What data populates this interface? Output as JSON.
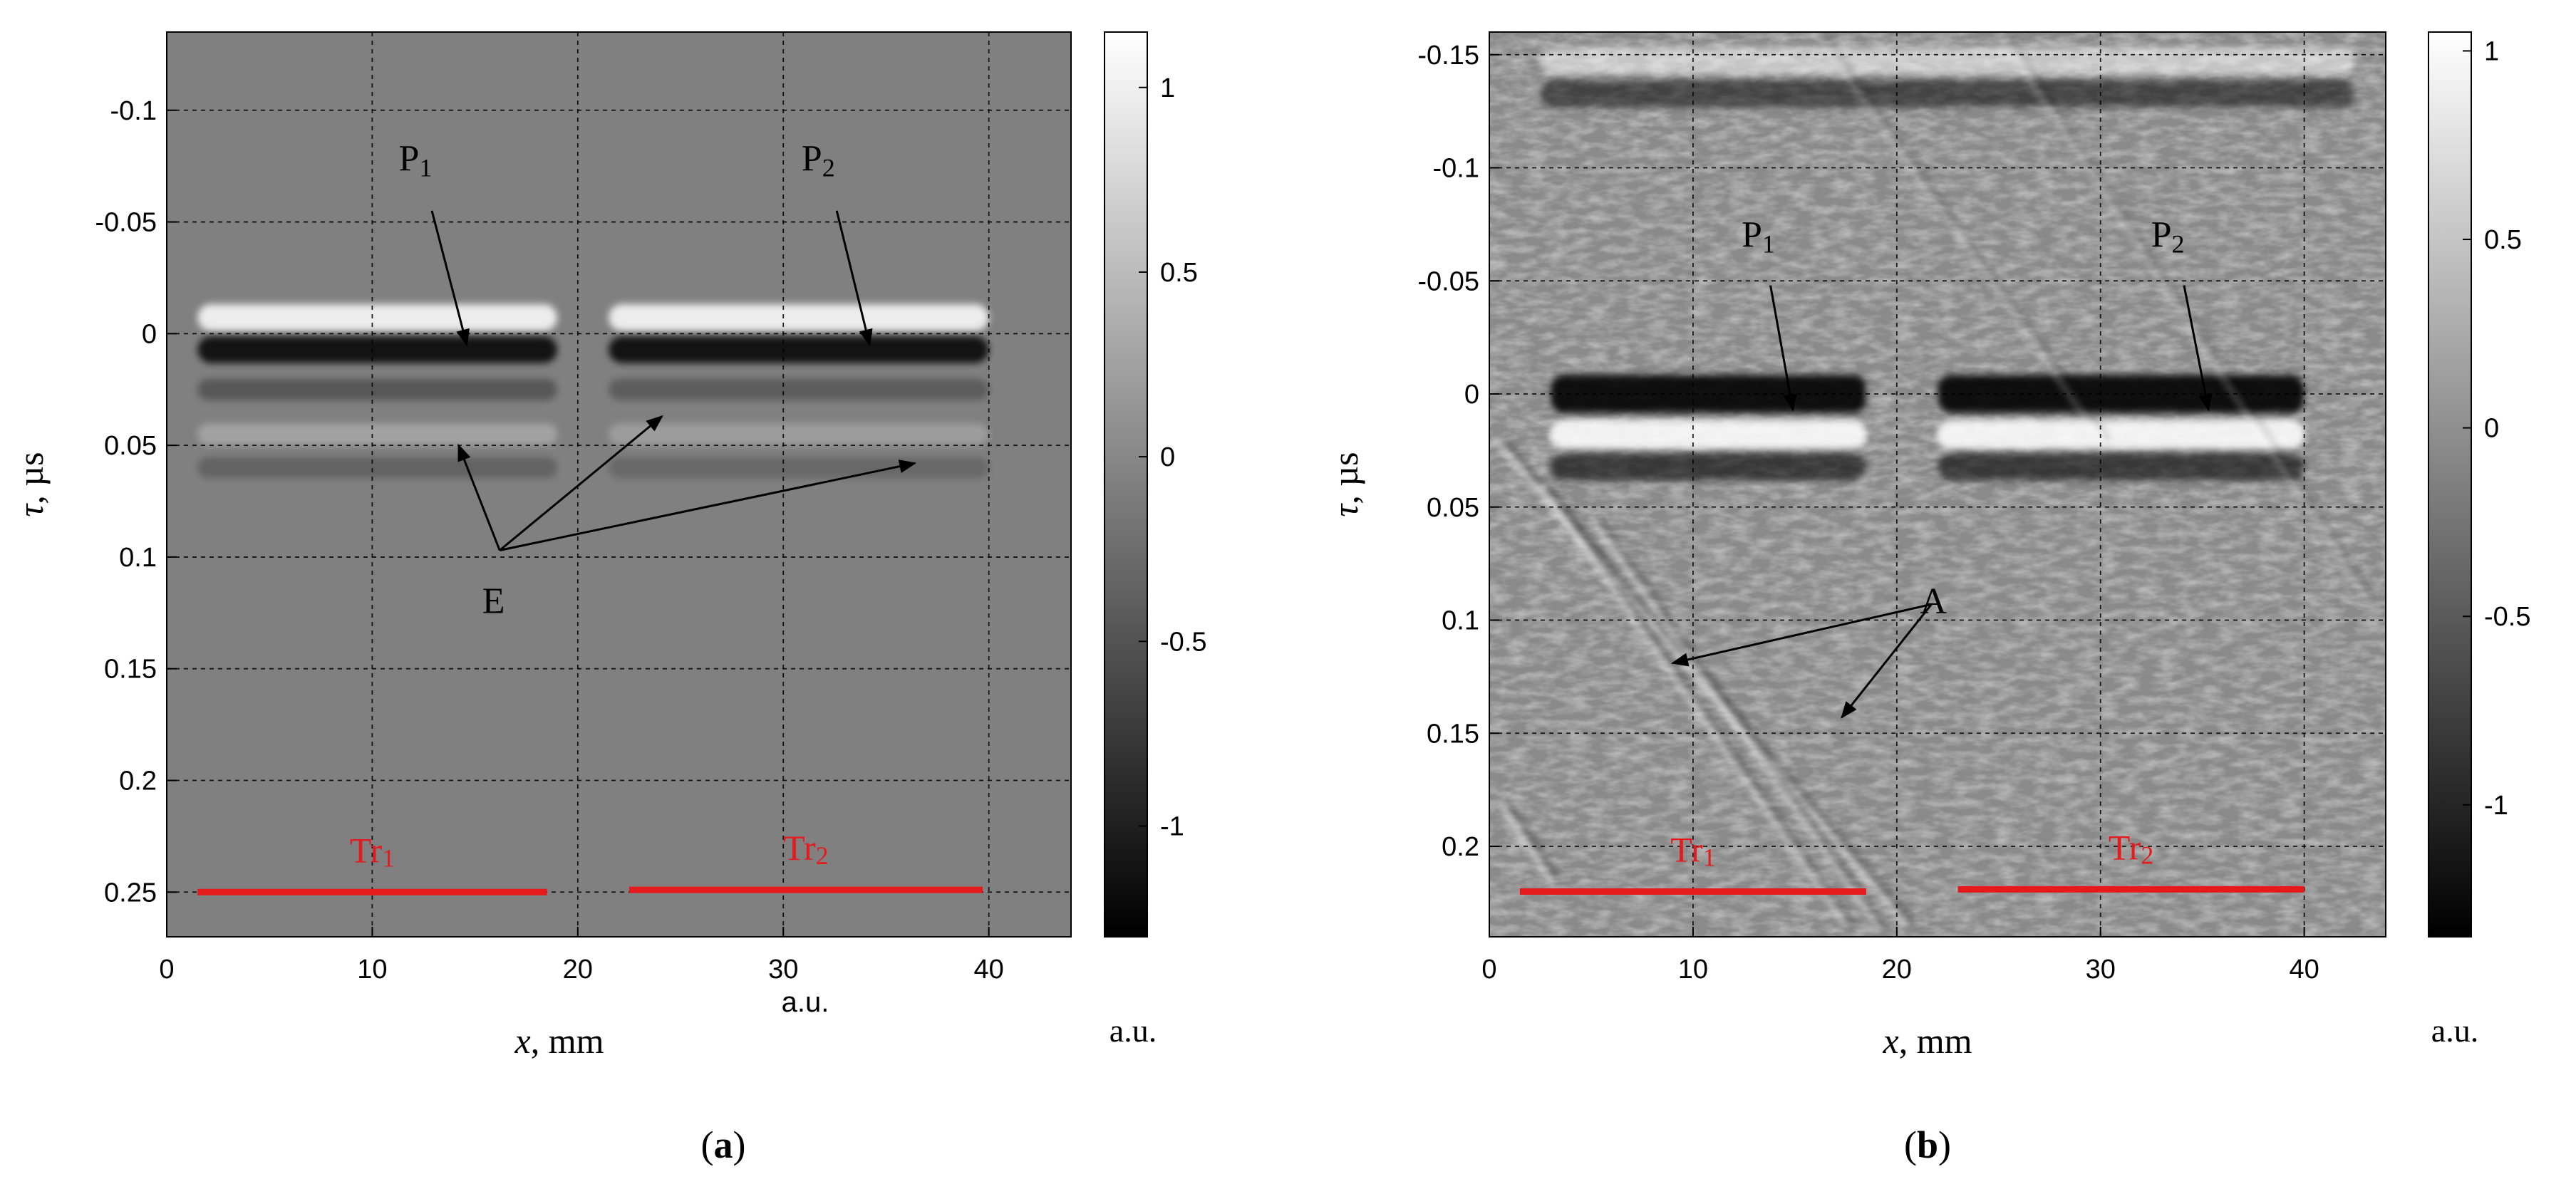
{
  "chart_data": [
    {
      "panel_label": "a",
      "type": "heatmap",
      "xlabel_var": "x",
      "xlabel_unit": ", mm",
      "ylabel_var": "τ",
      "ylabel_unit": ", µs",
      "x_unit_note": "a.u.",
      "colorbar_unit": "a.u.",
      "xlim": [
        0,
        44
      ],
      "ylim": [
        -0.135,
        0.27
      ],
      "y_inverted": true,
      "grid": true,
      "x_ticks": [
        0,
        10,
        20,
        30,
        40
      ],
      "x_tick_labels": [
        "0",
        "10",
        "20",
        "30",
        "40"
      ],
      "x_grid": [
        10,
        20,
        30,
        40
      ],
      "y_ticks": [
        -0.1,
        -0.05,
        0,
        0.05,
        0.1,
        0.15,
        0.2,
        0.25
      ],
      "y_tick_labels": [
        "-0.1",
        "-0.05",
        "0",
        "0.05",
        "0.1",
        "0.15",
        "0.2",
        "0.25"
      ],
      "colorbar": {
        "range": [
          -1.3,
          1.15
        ],
        "ticks": [
          1,
          0.5,
          0,
          -0.5,
          -1
        ],
        "tick_labels": [
          "1",
          "0.5",
          "0",
          "-0.5",
          "-1"
        ]
      },
      "features": [
        {
          "type": "echo_band",
          "x_start": 1.5,
          "x_end": 19.0,
          "tau": 0.0,
          "polarity": "bipolar",
          "strength": 1.0
        },
        {
          "type": "echo_band",
          "x_start": 1.5,
          "x_end": 19.0,
          "tau": 0.025,
          "polarity": "weak",
          "strength": 0.35
        },
        {
          "type": "echo_band",
          "x_start": 1.5,
          "x_end": 19.0,
          "tau": 0.045,
          "polarity": "weak",
          "strength": 0.3
        },
        {
          "type": "echo_band",
          "x_start": 1.5,
          "x_end": 19.0,
          "tau": 0.06,
          "polarity": "weak",
          "strength": 0.25
        },
        {
          "type": "echo_band",
          "x_start": 21.5,
          "x_end": 40.0,
          "tau": 0.0,
          "polarity": "bipolar",
          "strength": 1.0
        },
        {
          "type": "echo_band",
          "x_start": 21.5,
          "x_end": 40.0,
          "tau": 0.025,
          "polarity": "weak",
          "strength": 0.3
        },
        {
          "type": "echo_band",
          "x_start": 21.5,
          "x_end": 40.0,
          "tau": 0.045,
          "polarity": "weak",
          "strength": 0.25
        },
        {
          "type": "echo_band",
          "x_start": 21.5,
          "x_end": 40.0,
          "tau": 0.06,
          "polarity": "weak",
          "strength": 0.2
        }
      ],
      "annotations": [
        {
          "label": "P",
          "sub": "1",
          "text_at": [
            12.1,
            -0.073
          ],
          "arrows": [
            [
              [
                12.9,
                -0.055
              ],
              [
                14.6,
                0.005
              ]
            ]
          ]
        },
        {
          "label": "P",
          "sub": "2",
          "text_at": [
            31.7,
            -0.073
          ],
          "arrows": [
            [
              [
                32.6,
                -0.055
              ],
              [
                34.2,
                0.005
              ]
            ]
          ]
        },
        {
          "label": "E",
          "text_at": [
            15.9,
            0.125
          ],
          "arrows": [
            [
              [
                16.2,
                0.097
              ],
              [
                14.2,
                0.05
              ]
            ],
            [
              [
                16.2,
                0.097
              ],
              [
                24.1,
                0.037
              ]
            ],
            [
              [
                16.2,
                0.097
              ],
              [
                36.4,
                0.058
              ]
            ]
          ]
        }
      ],
      "transducers": [
        {
          "label": "Tr",
          "sub": "1",
          "x_start": 1.5,
          "x_end": 18.5,
          "tau": 0.25
        },
        {
          "label": "Tr",
          "sub": "2",
          "x_start": 22.5,
          "x_end": 39.7,
          "tau": 0.249
        }
      ],
      "accent_color": "#e41a1c"
    },
    {
      "panel_label": "b",
      "type": "heatmap",
      "xlabel_var": "x",
      "xlabel_unit": ", mm",
      "ylabel_var": "τ",
      "ylabel_unit": ", µs",
      "colorbar_unit": "a.u.",
      "xlim": [
        0,
        44
      ],
      "ylim": [
        -0.16,
        0.24
      ],
      "y_inverted": true,
      "grid": true,
      "x_ticks": [
        0,
        10,
        20,
        30,
        40
      ],
      "x_tick_labels": [
        "0",
        "10",
        "20",
        "30",
        "40"
      ],
      "x_grid": [
        10,
        20,
        30,
        40
      ],
      "y_ticks": [
        -0.15,
        -0.1,
        -0.05,
        0,
        0.05,
        0.1,
        0.15,
        0.2
      ],
      "y_tick_labels": [
        "-0.15",
        "-0.1",
        "-0.05",
        "0",
        "0.05",
        "0.1",
        "0.15",
        "0.2"
      ],
      "colorbar": {
        "range": [
          -1.35,
          1.05
        ],
        "ticks": [
          1,
          0.5,
          0,
          -0.5,
          -1
        ],
        "tick_labels": [
          "1",
          "0.5",
          "0",
          "-0.5",
          "-1"
        ]
      },
      "features": [
        {
          "type": "echo_band",
          "x_start": 2.5,
          "x_end": 42.5,
          "tau": -0.14,
          "polarity": "bipolar",
          "strength": 0.6
        },
        {
          "type": "echo_band",
          "x_start": 3.0,
          "x_end": 18.5,
          "tau": 0.0,
          "polarity": "dark",
          "strength": 1.0
        },
        {
          "type": "echo_band",
          "x_start": 3.0,
          "x_end": 18.5,
          "tau": 0.025,
          "polarity": "bipolar",
          "strength": 0.7
        },
        {
          "type": "echo_band",
          "x_start": 22.0,
          "x_end": 40.0,
          "tau": 0.0,
          "polarity": "dark",
          "strength": 1.0
        },
        {
          "type": "echo_band",
          "x_start": 22.0,
          "x_end": 40.0,
          "tau": 0.025,
          "polarity": "bipolar",
          "strength": 0.7
        },
        {
          "type": "streak",
          "from": [
            0.3,
            0.02
          ],
          "to": [
            20.5,
            0.235
          ],
          "strength": 0.55
        },
        {
          "type": "streak",
          "from": [
            2.5,
            0.04
          ],
          "to": [
            17.5,
            0.235
          ],
          "strength": 0.5
        },
        {
          "type": "streak",
          "from": [
            5.0,
            0.055
          ],
          "to": [
            19.0,
            0.235
          ],
          "strength": 0.45
        },
        {
          "type": "streak",
          "from": [
            0.5,
            0.18
          ],
          "to": [
            3.0,
            0.215
          ],
          "strength": 0.6
        },
        {
          "type": "streak",
          "from": [
            16.0,
            -0.16
          ],
          "to": [
            30.0,
            0.02
          ],
          "strength": 0.25
        },
        {
          "type": "streak",
          "from": [
            25.0,
            -0.16
          ],
          "to": [
            43.0,
            0.09
          ],
          "strength": 0.25
        }
      ],
      "annotations": [
        {
          "label": "P",
          "sub": "1",
          "text_at": [
            13.2,
            -0.065
          ],
          "arrows": [
            [
              [
                13.8,
                -0.048
              ],
              [
                14.9,
                0.007
              ]
            ]
          ]
        },
        {
          "label": "P",
          "sub": "2",
          "text_at": [
            33.3,
            -0.065
          ],
          "arrows": [
            [
              [
                34.1,
                -0.048
              ],
              [
                35.3,
                0.007
              ]
            ]
          ]
        },
        {
          "label": "A",
          "text_at": [
            21.8,
            0.097
          ],
          "arrows": [
            [
              [
                21.7,
                0.093
              ],
              [
                9.0,
                0.119
              ]
            ],
            [
              [
                21.7,
                0.093
              ],
              [
                17.3,
                0.143
              ]
            ]
          ]
        }
      ],
      "transducers": [
        {
          "label": "Tr",
          "sub": "1",
          "x_start": 1.5,
          "x_end": 18.5,
          "tau": 0.22
        },
        {
          "label": "Tr",
          "sub": "2",
          "x_start": 23.0,
          "x_end": 40.0,
          "tau": 0.219
        }
      ],
      "accent_color": "#e41a1c"
    }
  ]
}
